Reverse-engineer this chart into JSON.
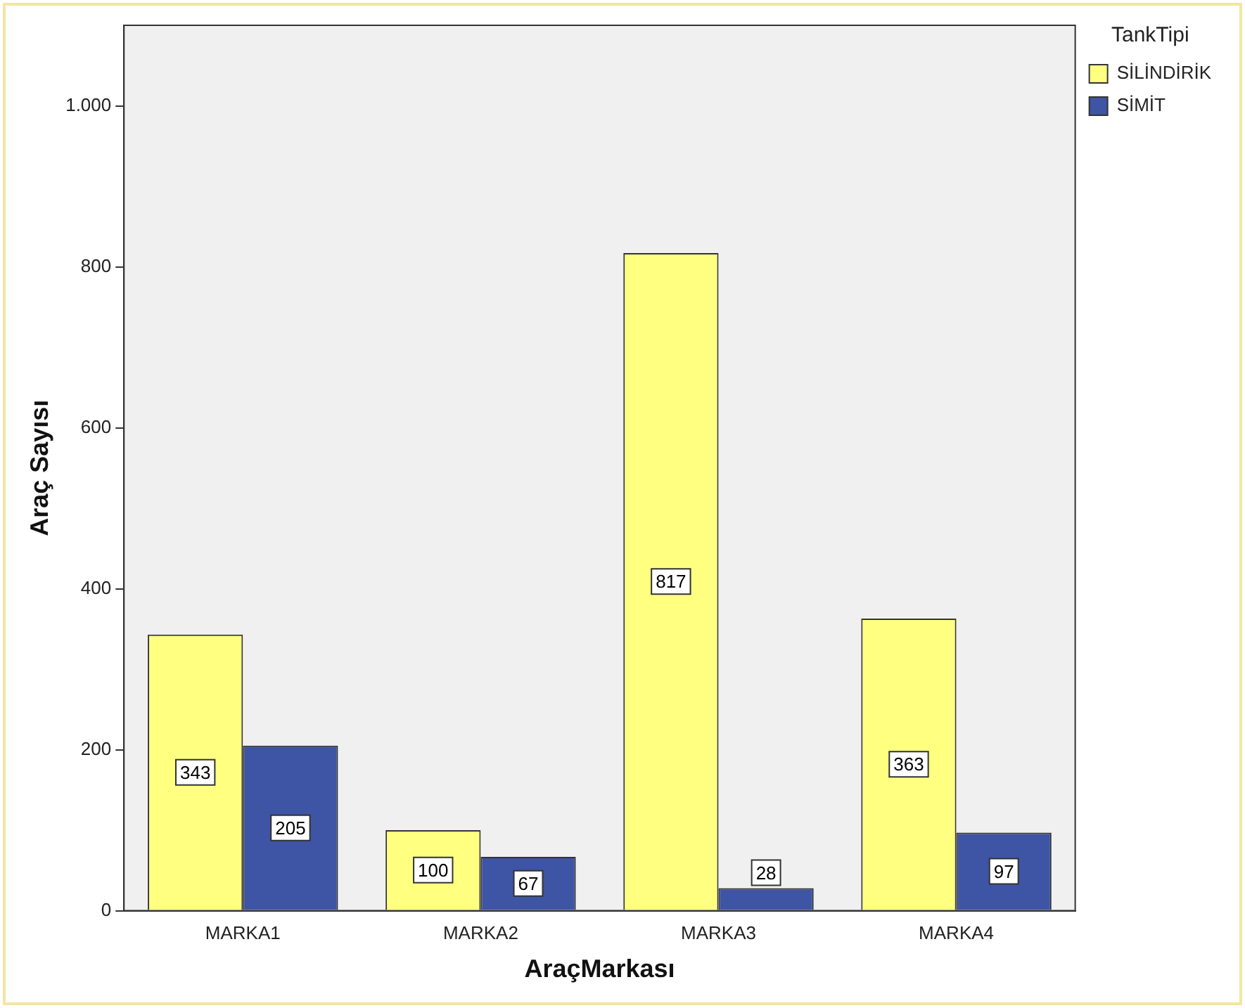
{
  "chart_data": {
    "type": "bar",
    "xlabel": "AraçMarkası",
    "ylabel": "Araç Sayısı",
    "legend_title": "TankTipi",
    "categories": [
      "MARKA1",
      "MARKA2",
      "MARKA3",
      "MARKA4"
    ],
    "series": [
      {
        "name": "SİLİNDİRİK",
        "color": "#ffff80",
        "values": [
          343,
          100,
          817,
          363
        ]
      },
      {
        "name": "SİMİT",
        "color": "#3e54a4",
        "values": [
          205,
          67,
          28,
          97
        ]
      }
    ],
    "ylim": [
      0,
      1100
    ],
    "yticks": [
      0,
      200,
      400,
      600,
      800,
      {
        "value": 1000,
        "label": "1.000"
      }
    ],
    "grid": false,
    "legend": "top right",
    "data_labels": true
  }
}
